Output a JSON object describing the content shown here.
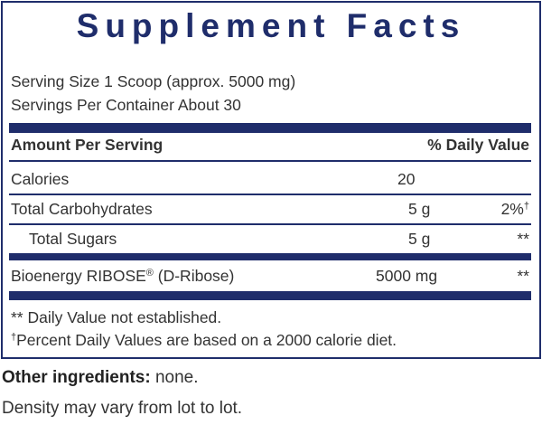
{
  "label": {
    "title": "Supplement Facts",
    "serving_size": "Serving Size 1 Scoop (approx. 5000 mg)",
    "servings_per_container": "Servings Per Container About 30",
    "header": {
      "amount": "Amount Per Serving",
      "daily_value": "% Daily Value"
    },
    "rows": [
      {
        "name": "Calories",
        "amount": "20"
      },
      {
        "name": "Total Carbohydrates",
        "amount": "5 g",
        "daily_value": "2%",
        "mark": "†"
      },
      {
        "name": "Total Sugars",
        "amount": "5 g",
        "daily_value": "**"
      },
      {
        "name": "Bioenergy RIBOSE",
        "mark": "®",
        "name_rest": " (D-Ribose)",
        "amount": "5000 mg",
        "daily_value": "**"
      }
    ],
    "footnotes": [
      {
        "text": "** Daily Value not established."
      },
      {
        "mark": "†",
        "text": "Percent Daily Values are based on a 2000 calorie diet."
      }
    ]
  },
  "other": {
    "ingredients_label": "Other ingredients:",
    "ingredients": " none.",
    "note": "Density may vary from lot to lot."
  }
}
